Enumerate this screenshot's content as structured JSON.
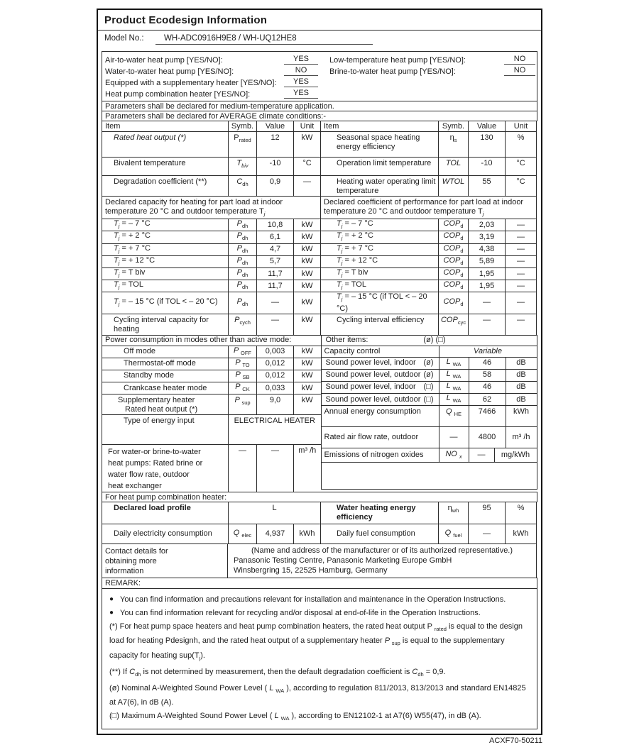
{
  "colors": {
    "ink": "#1c1c1c",
    "border": "#2b2b2b",
    "page": "#ffffff"
  },
  "header": {
    "title": "Product Ecodesign Information",
    "model_label": "Model No.:",
    "model_value": "WH-ADC0916H9E8 / WH-UQ12HE8"
  },
  "yes_no": {
    "left": [
      {
        "label": "Air-to-water heat pump [YES/NO]:",
        "value": "YES"
      },
      {
        "label": "Water-to-water heat pump [YES/NO]:",
        "value": "NO"
      },
      {
        "label": "Equipped with a supplementary heater [YES/NO]:",
        "value": "YES"
      },
      {
        "label": "Heat pump combination heater [YES/NO]:",
        "value": "YES"
      }
    ],
    "right": [
      {
        "label": "Low-temperature heat pump [YES/NO]:",
        "value": "NO"
      },
      {
        "label": "Brine-to-water heat pump [YES/NO]:",
        "value": "NO"
      }
    ]
  },
  "declarations": {
    "line1": "Parameters shall be declared for medium-temperature application.",
    "line2": "Parameters shall be declared for AVERAGE climate conditions:-"
  },
  "columns": {
    "item": "Item",
    "symb": "Symb.",
    "value": "Value",
    "unit": "Unit"
  },
  "params": {
    "rows": [
      {
        "l_item": [
          {
            "t": "Rated heat output (*)",
            "i": true
          }
        ],
        "l_symb": [
          {
            "t": "P"
          },
          {
            "t": "rated",
            "sub": true
          }
        ],
        "l_val": "12",
        "l_unit": "kW",
        "r_item": "Seasonal space heating energy efficiency",
        "r_symb": [
          {
            "t": "η"
          },
          {
            "t": "s",
            "sub": true
          }
        ],
        "r_val": "130",
        "r_unit": "%"
      },
      {
        "l_item": "Bivalent temperature",
        "l_symb": [
          {
            "t": "T",
            "i": true
          },
          {
            "t": "biv",
            "sub": true,
            "i": true
          }
        ],
        "l_val": "-10",
        "l_unit": "°C",
        "r_item": "Operation limit temperature",
        "r_symb": [
          {
            "t": "TOL",
            "i": true
          }
        ],
        "r_val": "-10",
        "r_unit": "°C"
      },
      {
        "l_item": "Degradation coefficient (**)",
        "l_symb": [
          {
            "t": "C",
            "i": true
          },
          {
            "t": "dh",
            "sub": true
          }
        ],
        "l_val": "0,9",
        "l_unit": "—",
        "r_item": "Heating water operating limit temperature",
        "r_symb": [
          {
            "t": "WTOL",
            "i": true
          }
        ],
        "r_val": "55",
        "r_unit": "°C"
      }
    ]
  },
  "part_load": {
    "left_header": [
      {
        "t": "Declared capacity for heating for part load at indoor temperature 20 °C and outdoor temperature T"
      },
      {
        "t": "j",
        "sub": true,
        "i": true
      }
    ],
    "right_header": [
      {
        "t": "Declared coefficient of performance for part load at indoor temperature 20 °C and outdoor temperature T"
      },
      {
        "t": "j",
        "sub": true,
        "i": true
      }
    ],
    "rows": [
      {
        "label": [
          {
            "t": "T",
            "i": true
          },
          {
            "t": "j",
            "sub": true,
            "i": true
          },
          {
            "t": " = – 7 °C"
          }
        ],
        "symb_l": [
          {
            "t": "P",
            "i": true
          },
          {
            "t": "dh",
            "sub": true
          }
        ],
        "val_l": "10,8",
        "unit_l": "kW",
        "symb_r": [
          {
            "t": "COP",
            "i": true
          },
          {
            "t": "d",
            "sub": true
          }
        ],
        "val_r": "2,03",
        "unit_r": "—"
      },
      {
        "label": [
          {
            "t": "T",
            "i": true
          },
          {
            "t": "j",
            "sub": true,
            "i": true
          },
          {
            "t": " = + 2 °C"
          }
        ],
        "symb_l": [
          {
            "t": "P",
            "i": true
          },
          {
            "t": "dh",
            "sub": true
          }
        ],
        "val_l": "6,1",
        "unit_l": "kW",
        "symb_r": [
          {
            "t": "COP",
            "i": true
          },
          {
            "t": "d",
            "sub": true
          }
        ],
        "val_r": "3,19",
        "unit_r": "—"
      },
      {
        "label": [
          {
            "t": "T",
            "i": true
          },
          {
            "t": "j",
            "sub": true,
            "i": true
          },
          {
            "t": " = + 7 °C"
          }
        ],
        "symb_l": [
          {
            "t": "P",
            "i": true
          },
          {
            "t": "dh",
            "sub": true
          }
        ],
        "val_l": "4,7",
        "unit_l": "kW",
        "symb_r": [
          {
            "t": "COP",
            "i": true
          },
          {
            "t": "d",
            "sub": true
          }
        ],
        "val_r": "4,38",
        "unit_r": "—"
      },
      {
        "label": [
          {
            "t": "T",
            "i": true
          },
          {
            "t": "j",
            "sub": true,
            "i": true
          },
          {
            "t": " = + 12 °C"
          }
        ],
        "symb_l": [
          {
            "t": "P",
            "i": true
          },
          {
            "t": "dh",
            "sub": true
          }
        ],
        "val_l": "5,7",
        "unit_l": "kW",
        "symb_r": [
          {
            "t": "COP",
            "i": true
          },
          {
            "t": "d",
            "sub": true
          }
        ],
        "val_r": "5,89",
        "unit_r": "—"
      },
      {
        "label": [
          {
            "t": "T",
            "i": true
          },
          {
            "t": "j",
            "sub": true,
            "i": true
          },
          {
            "t": " = T biv"
          }
        ],
        "symb_l": [
          {
            "t": "P",
            "i": true
          },
          {
            "t": "dh",
            "sub": true
          }
        ],
        "val_l": "11,7",
        "unit_l": "kW",
        "symb_r": [
          {
            "t": "COP",
            "i": true
          },
          {
            "t": "d",
            "sub": true
          }
        ],
        "val_r": "1,95",
        "unit_r": "—"
      },
      {
        "label": [
          {
            "t": "T",
            "i": true
          },
          {
            "t": "j",
            "sub": true,
            "i": true
          },
          {
            "t": " = TOL"
          }
        ],
        "symb_l": [
          {
            "t": "P",
            "i": true
          },
          {
            "t": "dh",
            "sub": true
          }
        ],
        "val_l": "11,7",
        "unit_l": "kW",
        "symb_r": [
          {
            "t": "COP",
            "i": true
          },
          {
            "t": "d",
            "sub": true
          }
        ],
        "val_r": "1,95",
        "unit_r": "—"
      },
      {
        "label": [
          {
            "t": "T",
            "i": true
          },
          {
            "t": "j",
            "sub": true,
            "i": true
          },
          {
            "t": " = – 15 °C (if TOL < – 20 °C)"
          }
        ],
        "symb_l": [
          {
            "t": "P",
            "i": true
          },
          {
            "t": "dh",
            "sub": true
          }
        ],
        "val_l": "—",
        "unit_l": "kW",
        "symb_r": [
          {
            "t": "COP",
            "i": true
          },
          {
            "t": "d",
            "sub": true
          }
        ],
        "val_r": "—",
        "unit_r": "—"
      },
      {
        "label": [
          {
            "t": "Cycling interval capacity for heating"
          }
        ],
        "label_r": [
          {
            "t": "Cycling interval efficiency"
          }
        ],
        "symb_l": [
          {
            "t": "P",
            "i": true
          },
          {
            "t": "cych",
            "sub": true
          }
        ],
        "val_l": "—",
        "unit_l": "kW",
        "symb_r": [
          {
            "t": "COP",
            "i": true
          },
          {
            "t": "cyc",
            "sub": true
          }
        ],
        "val_r": "—",
        "unit_r": "—"
      }
    ]
  },
  "power_modes": {
    "header": "Power consumption in modes other than active mode:",
    "rows": [
      {
        "label": "Off mode",
        "symb": [
          {
            "t": "P ",
            "i": true
          },
          {
            "t": "OFF",
            "sub": true
          }
        ],
        "val": "0,003",
        "unit": "kW"
      },
      {
        "label": "Thermostat-off mode",
        "symb": [
          {
            "t": "P ",
            "i": true
          },
          {
            "t": "TO",
            "sub": true
          }
        ],
        "val": "0,012",
        "unit": "kW"
      },
      {
        "label": "Standby mode",
        "symb": [
          {
            "t": "P ",
            "i": true
          },
          {
            "t": "SB",
            "sub": true
          }
        ],
        "val": "0,012",
        "unit": "kW"
      },
      {
        "label": "Crankcase heater mode",
        "symb": [
          {
            "t": "P ",
            "i": true
          },
          {
            "t": "CK",
            "sub": true
          }
        ],
        "val": "0,033",
        "unit": "kW"
      }
    ],
    "supp": {
      "label1": "Supplementary heater",
      "label2": "Rated heat output (*)",
      "symb": [
        {
          "t": "P ",
          "i": true
        },
        {
          "t": "sup",
          "sub": true
        }
      ],
      "val": "9,0",
      "unit": "kW"
    },
    "type_row": {
      "label": "Type of energy input",
      "value": "ELECTRICAL HEATER"
    },
    "brine": {
      "l1": "For water-or brine-to-water",
      "l2": "heat pumps: Rated brine or",
      "l3": "water flow rate, outdoor",
      "l4": "heat exchanger",
      "symb": "—",
      "val": "—",
      "unit": "m³ /h"
    }
  },
  "other_items": {
    "header": "Other items:",
    "header_marks": "(ø) (□)",
    "capacity": {
      "label": "Capacity control",
      "value": "Variable"
    },
    "sound": [
      {
        "label": "Sound power level, indoor",
        "mark": "(ø)",
        "symb": [
          {
            "t": "L ",
            "i": true
          },
          {
            "t": "WA",
            "sub": true
          }
        ],
        "val": "46",
        "unit": "dB"
      },
      {
        "label": "Sound power level, outdoor",
        "mark": "(ø)",
        "symb": [
          {
            "t": "L ",
            "i": true
          },
          {
            "t": "WA",
            "sub": true
          }
        ],
        "val": "58",
        "unit": "dB"
      },
      {
        "label": "Sound power level, indoor",
        "mark": "(□)",
        "symb": [
          {
            "t": "L ",
            "i": true
          },
          {
            "t": "WA",
            "sub": true
          }
        ],
        "val": "46",
        "unit": "dB"
      },
      {
        "label": "Sound power level, outdoor",
        "mark": "(□)",
        "symb": [
          {
            "t": "L ",
            "i": true
          },
          {
            "t": "WA",
            "sub": true
          }
        ],
        "val": "62",
        "unit": "dB"
      }
    ],
    "annual": {
      "label": "Annual energy consumption",
      "symb": [
        {
          "t": "Q ",
          "i": true
        },
        {
          "t": "HE",
          "sub": true
        }
      ],
      "val": "7466",
      "unit": "kWh"
    },
    "airflow": {
      "label": "Rated air flow rate, outdoor",
      "symb": "—",
      "val": "4800",
      "unit": "m³ /h"
    },
    "nox": {
      "label": "Emissions of nitrogen oxides",
      "symb": [
        {
          "t": "NO ",
          "i": true
        },
        {
          "t": "x",
          "sub": true,
          "i": true
        }
      ],
      "val": "—",
      "unit": "mg/kWh"
    }
  },
  "combi": {
    "section_label": "For heat pump combination heater:",
    "load_profile_label": "Declared load profile",
    "load_profile_value": "L",
    "water_heating_label": "Water heating energy efficiency",
    "whe_symb": [
      {
        "t": "η"
      },
      {
        "t": "wh",
        "sub": true
      }
    ],
    "whe_val": "95",
    "whe_unit": "%",
    "daily_elec_label": "Daily electricity consumption",
    "daily_elec_symb": [
      {
        "t": "Q ",
        "i": true
      },
      {
        "t": "elec",
        "sub": true
      }
    ],
    "daily_elec_val": "4,937",
    "daily_elec_unit": "kWh",
    "daily_fuel_label": "Daily fuel consumption",
    "daily_fuel_symb": [
      {
        "t": "Q ",
        "i": true
      },
      {
        "t": "fuel",
        "sub": true
      }
    ],
    "daily_fuel_val": "—",
    "daily_fuel_unit": "kWh"
  },
  "contact": {
    "l1": "Contact details for",
    "l2": "obtaining more",
    "l3": "information",
    "line1": "(Name and address of the manufacturer or of its authorized representative.)",
    "line2": "Panasonic Testing Centre, Panasonic Marketing Europe GmbH",
    "line3": "Winsbergring 15, 22525 Hamburg, Germany"
  },
  "remark": {
    "label": "REMARK:",
    "bullet": "●",
    "bullets": [
      "You can find information and precautions relevant for installation and maintenance in the Operation Instructions.",
      "You can find information relevant for recycling and/or disposal at end-of-life in the Operation Instructions."
    ],
    "footnotes": [
      [
        {
          "t": "(*) For heat pump space heaters and heat pump combination heaters, the rated heat output P "
        },
        {
          "t": "rated",
          "sub": true
        },
        {
          "t": " is equal to the design load for heating Pdesignh, and the rated heat output of a supplementary heater "
        },
        {
          "t": "P ",
          "i": true
        },
        {
          "t": "sup",
          "sub": true
        },
        {
          "t": " is equal to the supplementary capacity for heating sup(T"
        },
        {
          "t": "j",
          "sub": true
        },
        {
          "t": ")."
        }
      ],
      [
        {
          "t": "(**) If "
        },
        {
          "t": "C",
          "i": true
        },
        {
          "t": "dh",
          "sub": true
        },
        {
          "t": " is not determined by measurement, then the default degradation coefficient is "
        },
        {
          "t": "C",
          "i": true
        },
        {
          "t": "dh",
          "sub": true
        },
        {
          "t": " = 0,9."
        }
      ],
      [
        {
          "t": "(ø) Nominal A-Weighted Sound Power Level ( "
        },
        {
          "t": "L ",
          "i": true
        },
        {
          "t": "WA",
          "sub": true
        },
        {
          "t": " ), according to regulation 811/2013, 813/2013 and standard EN14825 at A7(6), in dB (A)."
        }
      ],
      [
        {
          "t": "(□) Maximum A-Weighted Sound Power Level ( "
        },
        {
          "t": "L ",
          "i": true
        },
        {
          "t": "WA",
          "sub": true
        },
        {
          "t": " ), according to EN12102-1 at A7(6) W55(47), in dB (A)."
        }
      ]
    ]
  },
  "page": {
    "footer_code": "ACXF70-50211"
  }
}
